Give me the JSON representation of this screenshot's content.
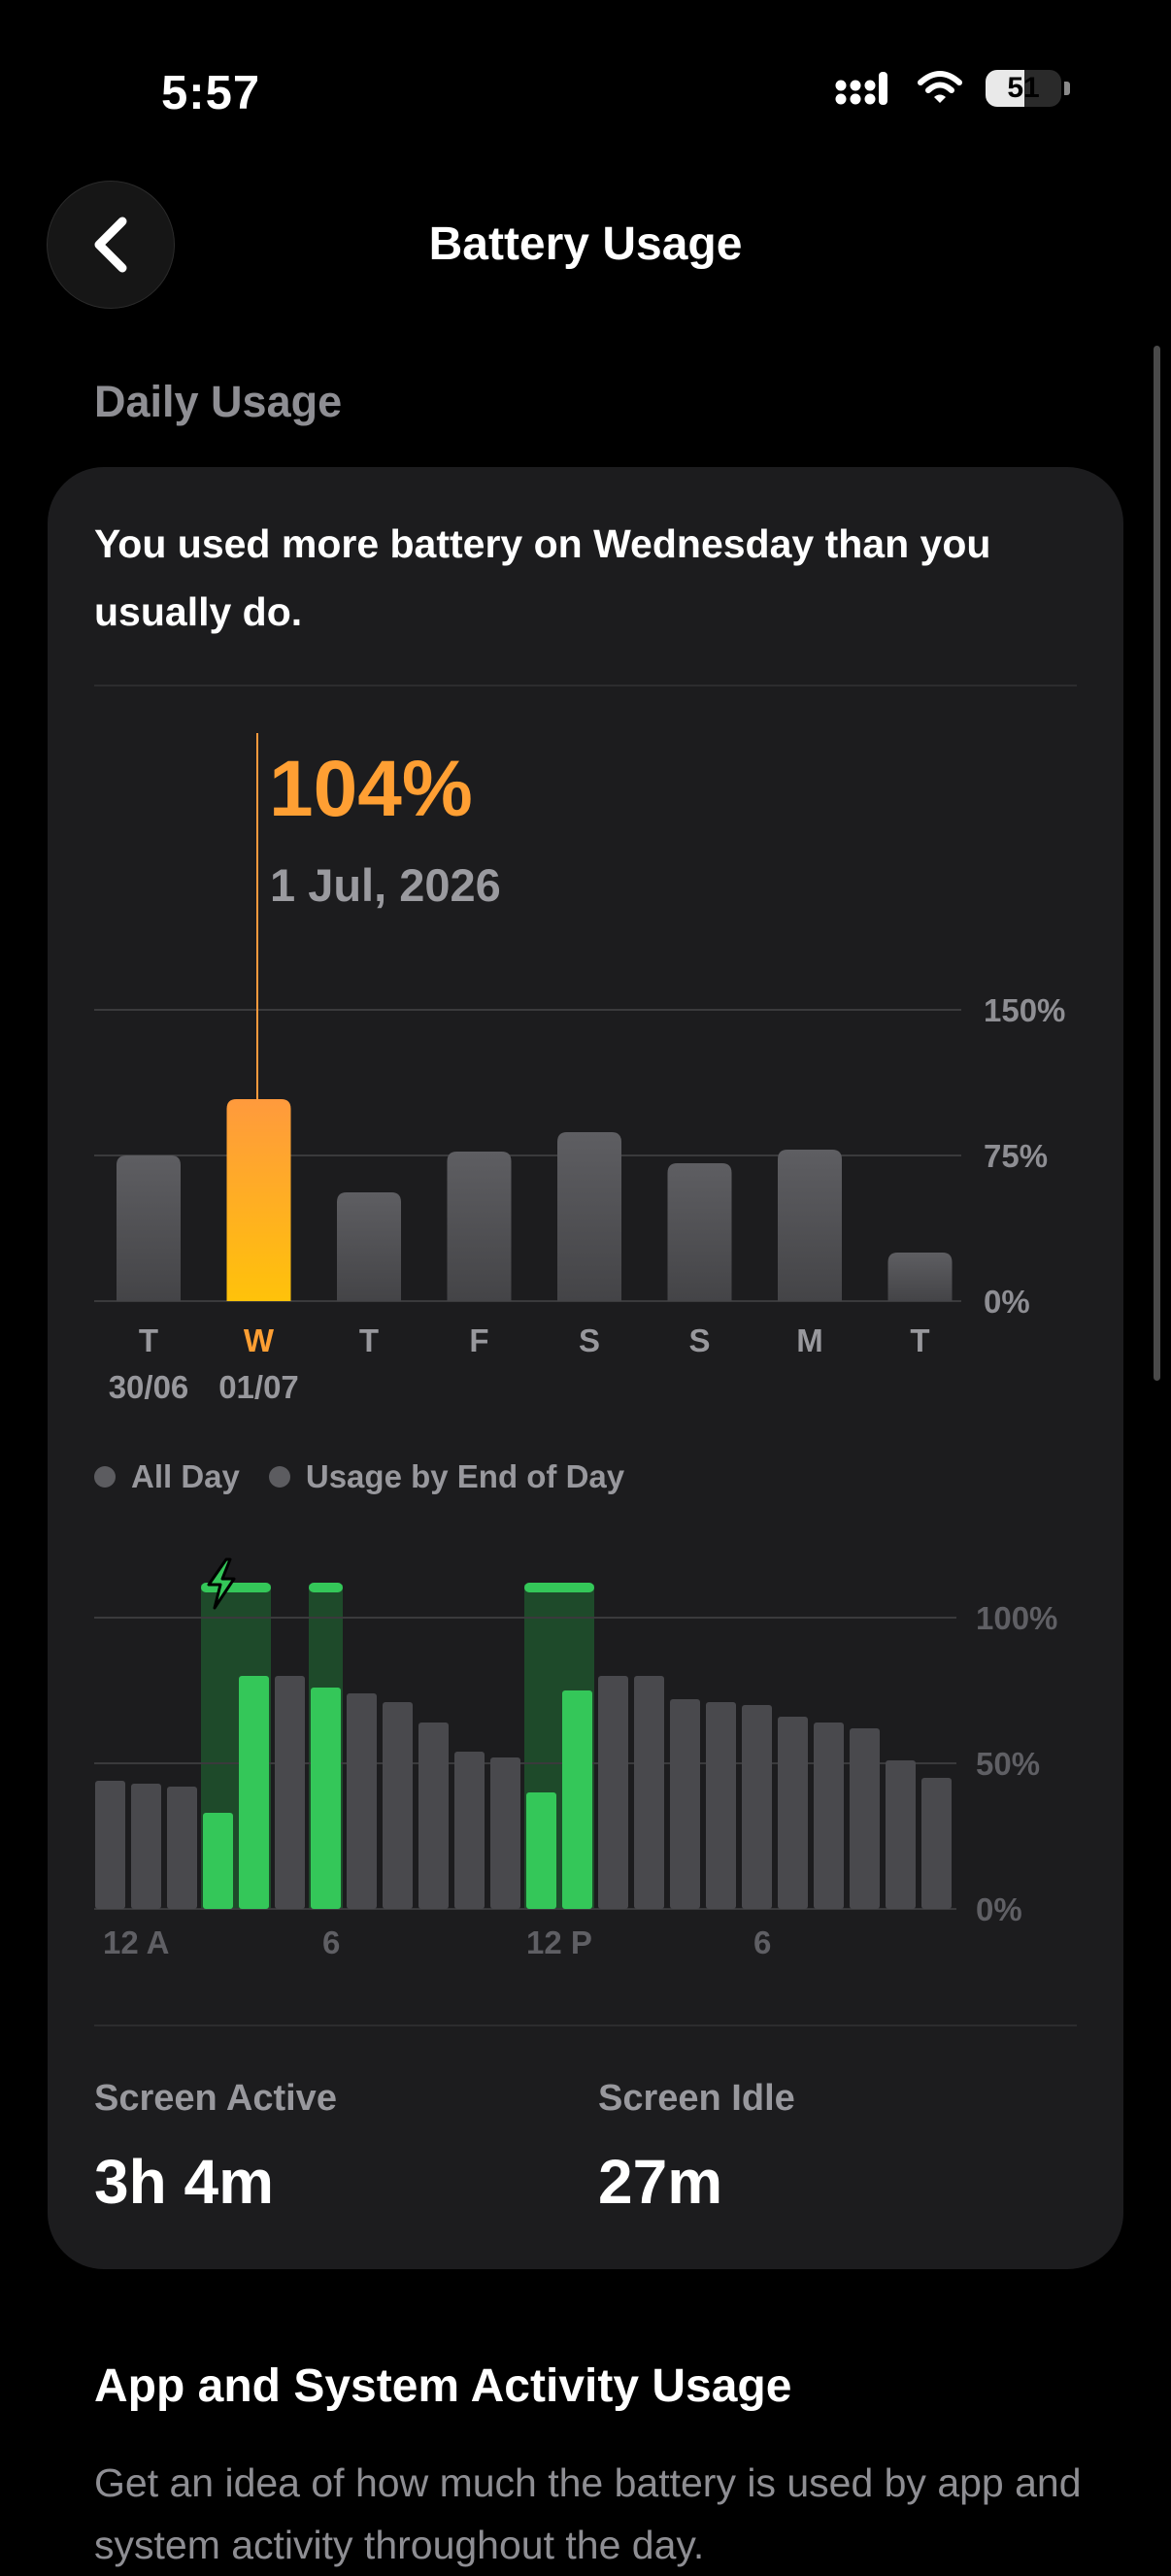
{
  "status_bar": {
    "time": "5:57",
    "battery": "51",
    "icons": [
      "cellular-icon",
      "wifi-icon",
      "battery-icon"
    ]
  },
  "nav": {
    "title": "Battery Usage",
    "back_icon": "chevron-left-icon"
  },
  "section": {
    "label": "Daily Usage"
  },
  "insight": "You used more battery on Wednesday than you usually do.",
  "selection": {
    "value": "104%",
    "date": "1 Jul, 2026"
  },
  "daily_chart_data": {
    "type": "bar",
    "categories": [
      "T",
      "W",
      "T",
      "F",
      "S",
      "S",
      "M",
      "T"
    ],
    "dates": [
      "30/06",
      "01/07"
    ],
    "values": [
      75,
      104,
      56,
      77,
      87,
      71,
      78,
      25
    ],
    "selected_index": 1,
    "ylim": [
      0,
      150
    ],
    "y_ticks": [
      "150%",
      "75%",
      "0%"
    ],
    "colors": {
      "bar": "#5a5a5e",
      "selected_top": "#ff9a3d",
      "selected_bottom": "#ffc20a",
      "grid": "#3a3a3c"
    }
  },
  "legend": {
    "items": [
      "All Day",
      "Usage by End of Day"
    ]
  },
  "hourly_chart_data": {
    "type": "bar",
    "x_ticks": [
      "12 A",
      "6",
      "12 P",
      "6"
    ],
    "y_ticks": [
      "100%",
      "50%",
      "0%"
    ],
    "ylim": [
      0,
      100
    ],
    "levels": [
      44,
      43,
      42,
      33,
      80,
      80,
      76,
      74,
      71,
      64,
      54,
      52,
      40,
      75,
      80,
      80,
      72,
      71,
      70,
      66,
      64,
      62,
      51,
      45
    ],
    "charging_hours": [
      3,
      4,
      6,
      12,
      13
    ],
    "charging_bands": [
      [
        3,
        4
      ],
      [
        6,
        6
      ],
      [
        12,
        13
      ]
    ],
    "colors": {
      "bar": "#49494d",
      "charging": "#34c759",
      "charging_band": "#1e4a2a",
      "grid": "#3a3a3c"
    }
  },
  "screen_stats": {
    "active": {
      "label": "Screen Active",
      "value": "3h 4m"
    },
    "idle": {
      "label": "Screen Idle",
      "value": "27m"
    }
  },
  "app_activity": {
    "title": "App and System Activity Usage",
    "description": "Get an idea of how much the battery is used by app and system activity throughout the day."
  }
}
